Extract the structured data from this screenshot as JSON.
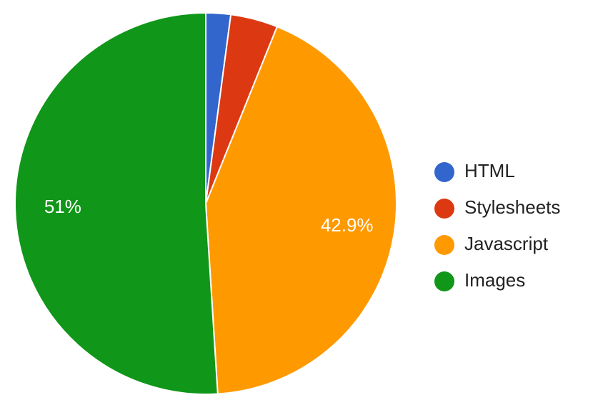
{
  "chart_data": {
    "type": "pie",
    "categories": [
      "HTML",
      "Stylesheets",
      "Javascript",
      "Images"
    ],
    "values": [
      2.1,
      4.0,
      42.9,
      51
    ],
    "value_labels": [
      null,
      null,
      "42.9%",
      "51%"
    ],
    "colors": [
      "#3366cc",
      "#dc3912",
      "#ff9900",
      "#109618"
    ],
    "legend": "right"
  }
}
